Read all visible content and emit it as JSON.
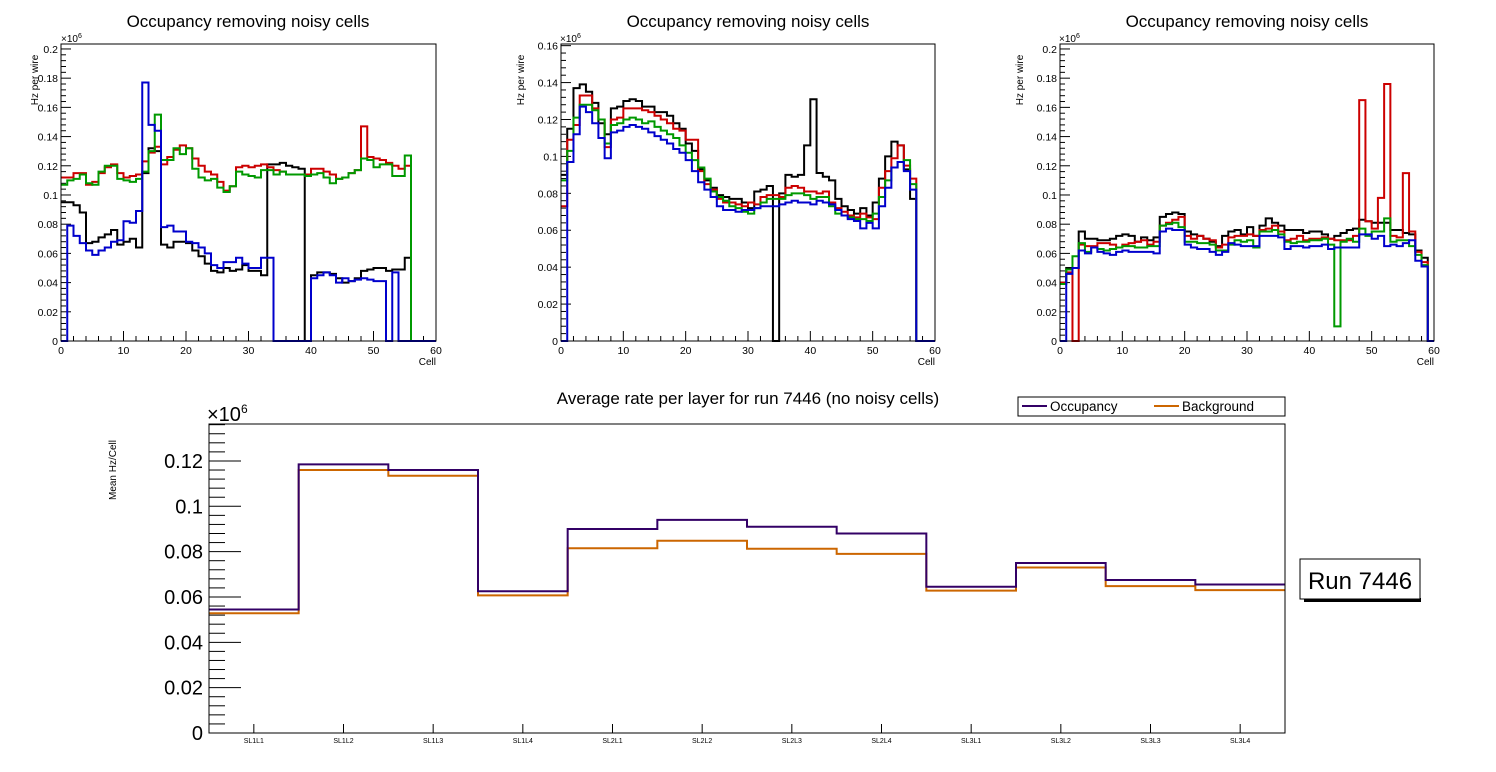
{
  "chart_data": [
    {
      "type": "line",
      "style": "step-histogram",
      "title": "Occupancy removing noisy cells",
      "xlabel": "Cell",
      "ylabel": "Hz per wire",
      "y_exponent": "×10^6",
      "y_exponent_base": "×10",
      "y_exponent_power": "6",
      "xlim": [
        0,
        60
      ],
      "ylim": [
        0,
        0.2034
      ],
      "xticks": [
        "0",
        "10",
        "20",
        "30",
        "40",
        "50",
        "60"
      ],
      "yticks": [
        "0",
        "0.02",
        "0.04",
        "0.06",
        "0.08",
        "0.1",
        "0.12",
        "0.14",
        "0.16",
        "0.18",
        "0.2"
      ],
      "ytick_values": [
        0,
        0.02,
        0.04,
        0.06,
        0.08,
        0.1,
        0.12,
        0.14,
        0.16,
        0.18,
        0.2
      ],
      "legend": "none",
      "series": [
        {
          "name": "black",
          "color": "#000000",
          "values": [
            0.095,
            0.095,
            0.093,
            0.088,
            0.067,
            0.068,
            0.071,
            0.073,
            0.076,
            0.066,
            0.068,
            0.07,
            0.064,
            0.115,
            0.132,
            0.13,
            0.066,
            0.064,
            0.068,
            0.068,
            0.067,
            0.062,
            0.058,
            0.053,
            0.048,
            0.047,
            0.05,
            0.048,
            0.049,
            0.052,
            0.048,
            0.048,
            0.045,
            0.121,
            0.121,
            0.122,
            0.12,
            0.119,
            0.118,
            0.0,
            0.045,
            0.047,
            0.047,
            0.046,
            0.043,
            0.04,
            0.041,
            0.043,
            0.048,
            0.049,
            0.05,
            0.05,
            0.048,
            0.049,
            0.049,
            0.057,
            0.0,
            0,
            0,
            0
          ]
        },
        {
          "name": "red",
          "color": "#cc0000",
          "values": [
            0.112,
            0.112,
            0.115,
            0.115,
            0.107,
            0.109,
            0.115,
            0.119,
            0.121,
            0.115,
            0.112,
            0.113,
            0.114,
            0.123,
            0.129,
            0.133,
            0.121,
            0.126,
            0.131,
            0.134,
            0.132,
            0.125,
            0.12,
            0.116,
            0.114,
            0.109,
            0.103,
            0.106,
            0.119,
            0.12,
            0.119,
            0.12,
            0.121,
            0.119,
            0.117,
            0.116,
            0.114,
            0.114,
            0.114,
            0.114,
            0.118,
            0.118,
            0.116,
            0.114,
            0.111,
            0.112,
            0.115,
            0.117,
            0.147,
            0.126,
            0.125,
            0.124,
            0.122,
            0.12,
            0.118,
            0.12,
            0.0,
            0,
            0,
            0
          ]
        },
        {
          "name": "green",
          "color": "#009900",
          "values": [
            0.107,
            0.11,
            0.111,
            0.114,
            0.108,
            0.107,
            0.116,
            0.12,
            0.12,
            0.111,
            0.11,
            0.109,
            0.111,
            0.116,
            0.13,
            0.155,
            0.124,
            0.124,
            0.132,
            0.128,
            0.132,
            0.118,
            0.112,
            0.11,
            0.111,
            0.105,
            0.102,
            0.106,
            0.116,
            0.114,
            0.113,
            0.112,
            0.117,
            0.117,
            0.114,
            0.116,
            0.114,
            0.114,
            0.114,
            0.113,
            0.114,
            0.115,
            0.112,
            0.108,
            0.111,
            0.112,
            0.115,
            0.117,
            0.125,
            0.124,
            0.119,
            0.121,
            0.121,
            0.113,
            0.113,
            0.127,
            0.0,
            0,
            0,
            0
          ]
        },
        {
          "name": "blue",
          "color": "#0000cc",
          "values": [
            0.0,
            0.079,
            0.072,
            0.067,
            0.062,
            0.059,
            0.062,
            0.064,
            0.068,
            0.069,
            0.082,
            0.081,
            0.089,
            0.177,
            0.148,
            0.144,
            0.078,
            0.079,
            0.075,
            0.075,
            0.068,
            0.067,
            0.064,
            0.06,
            0.052,
            0.05,
            0.054,
            0.054,
            0.057,
            0.053,
            0.05,
            0.05,
            0.057,
            0.057,
            0.0,
            0.0,
            0.0,
            0.0,
            0.0,
            0.0,
            0.043,
            0.045,
            0.047,
            0.045,
            0.04,
            0.043,
            0.041,
            0.042,
            0.043,
            0.042,
            0.041,
            0.041,
            0.0,
            0.047,
            0.0,
            0.0,
            0.0,
            0,
            0,
            0
          ]
        }
      ]
    },
    {
      "type": "line",
      "style": "step-histogram",
      "title": "Occupancy removing noisy cells",
      "xlabel": "Cell",
      "ylabel": "Hz per wire",
      "y_exponent_base": "×10",
      "y_exponent_power": "6",
      "xlim": [
        0,
        60
      ],
      "ylim": [
        0,
        0.1609
      ],
      "xticks": [
        "0",
        "10",
        "20",
        "30",
        "40",
        "50",
        "60"
      ],
      "yticks": [
        "0",
        "0.02",
        "0.04",
        "0.06",
        "0.08",
        "0.1",
        "0.12",
        "0.14",
        "0.16"
      ],
      "ytick_values": [
        0,
        0.02,
        0.04,
        0.06,
        0.08,
        0.1,
        0.12,
        0.14,
        0.16
      ],
      "legend": "none",
      "series": [
        {
          "name": "black",
          "color": "#000000",
          "values": [
            0.09,
            0.115,
            0.137,
            0.139,
            0.135,
            0.129,
            0.118,
            0.112,
            0.126,
            0.127,
            0.13,
            0.131,
            0.13,
            0.127,
            0.127,
            0.124,
            0.124,
            0.122,
            0.118,
            0.115,
            0.107,
            0.103,
            0.093,
            0.087,
            0.083,
            0.079,
            0.078,
            0.077,
            0.077,
            0.075,
            0.072,
            0.081,
            0.082,
            0.084,
            0.0,
            0.08,
            0.09,
            0.089,
            0.09,
            0.106,
            0.131,
            0.091,
            0.089,
            0.087,
            0.077,
            0.073,
            0.071,
            0.069,
            0.072,
            0.068,
            0.075,
            0.088,
            0.1,
            0.108,
            0.106,
            0.093,
            0.077,
            0.0,
            0,
            0
          ]
        },
        {
          "name": "red",
          "color": "#cc0000",
          "values": [
            0.073,
            0.109,
            0.117,
            0.133,
            0.133,
            0.126,
            0.12,
            0.105,
            0.12,
            0.121,
            0.126,
            0.126,
            0.126,
            0.125,
            0.124,
            0.122,
            0.12,
            0.118,
            0.115,
            0.114,
            0.109,
            0.109,
            0.092,
            0.085,
            0.082,
            0.077,
            0.075,
            0.075,
            0.074,
            0.073,
            0.075,
            0.074,
            0.078,
            0.079,
            0.079,
            0.078,
            0.083,
            0.084,
            0.083,
            0.081,
            0.081,
            0.08,
            0.081,
            0.075,
            0.072,
            0.07,
            0.068,
            0.067,
            0.069,
            0.067,
            0.066,
            0.083,
            0.092,
            0.099,
            0.106,
            0.095,
            0.088,
            0.0,
            0,
            0
          ]
        },
        {
          "name": "green",
          "color": "#009900",
          "values": [
            0.087,
            0.103,
            0.121,
            0.128,
            0.128,
            0.125,
            0.12,
            0.107,
            0.117,
            0.118,
            0.12,
            0.121,
            0.12,
            0.118,
            0.119,
            0.116,
            0.114,
            0.112,
            0.11,
            0.106,
            0.102,
            0.098,
            0.094,
            0.088,
            0.081,
            0.078,
            0.076,
            0.073,
            0.072,
            0.07,
            0.069,
            0.072,
            0.075,
            0.077,
            0.077,
            0.077,
            0.079,
            0.08,
            0.08,
            0.079,
            0.077,
            0.078,
            0.078,
            0.073,
            0.069,
            0.068,
            0.067,
            0.066,
            0.066,
            0.065,
            0.069,
            0.078,
            0.087,
            0.094,
            0.097,
            0.098,
            0.085,
            0.0,
            0,
            0
          ]
        },
        {
          "name": "blue",
          "color": "#0000cc",
          "values": [
            0.0,
            0.097,
            0.112,
            0.127,
            0.124,
            0.118,
            0.11,
            0.099,
            0.113,
            0.114,
            0.116,
            0.117,
            0.116,
            0.115,
            0.113,
            0.111,
            0.109,
            0.107,
            0.104,
            0.102,
            0.098,
            0.092,
            0.086,
            0.082,
            0.078,
            0.073,
            0.071,
            0.071,
            0.07,
            0.071,
            0.071,
            0.072,
            0.073,
            0.073,
            0.073,
            0.074,
            0.075,
            0.076,
            0.075,
            0.075,
            0.074,
            0.076,
            0.075,
            0.074,
            0.071,
            0.068,
            0.066,
            0.065,
            0.061,
            0.064,
            0.061,
            0.073,
            0.083,
            0.094,
            0.097,
            0.092,
            0.082,
            0.0,
            0,
            0
          ]
        }
      ]
    },
    {
      "type": "line",
      "style": "step-histogram",
      "title": "Occupancy removing noisy cells",
      "xlabel": "Cell",
      "ylabel": "Hz per wire",
      "y_exponent_base": "×10",
      "y_exponent_power": "6",
      "xlim": [
        0,
        60
      ],
      "ylim": [
        0,
        0.2034
      ],
      "xticks": [
        "0",
        "10",
        "20",
        "30",
        "40",
        "50",
        "60"
      ],
      "yticks": [
        "0",
        "0.02",
        "0.04",
        "0.06",
        "0.08",
        "0.1",
        "0.12",
        "0.14",
        "0.16",
        "0.18",
        "0.2"
      ],
      "ytick_values": [
        0,
        0.02,
        0.04,
        0.06,
        0.08,
        0.1,
        0.12,
        0.14,
        0.16,
        0.18,
        0.2
      ],
      "legend": "none",
      "series": [
        {
          "name": "black",
          "color": "#000000",
          "values": [
            0.04,
            0.05,
            0.05,
            0.075,
            0.07,
            0.07,
            0.069,
            0.069,
            0.07,
            0.072,
            0.073,
            0.072,
            0.068,
            0.071,
            0.069,
            0.071,
            0.085,
            0.087,
            0.088,
            0.087,
            0.075,
            0.073,
            0.072,
            0.07,
            0.068,
            0.065,
            0.072,
            0.075,
            0.076,
            0.073,
            0.078,
            0.072,
            0.079,
            0.084,
            0.081,
            0.079,
            0.076,
            0.076,
            0.076,
            0.074,
            0.075,
            0.075,
            0.073,
            0.07,
            0.072,
            0.074,
            0.076,
            0.077,
            0.083,
            0.082,
            0.081,
            0.081,
            0.081,
            0.076,
            0.076,
            0.074,
            0.073,
            0.062,
            0.057,
            0
          ]
        },
        {
          "name": "red",
          "color": "#cc0000",
          "values": [
            0.04,
            0.047,
            0.0,
            0.066,
            0.065,
            0.065,
            0.067,
            0.067,
            0.066,
            0.064,
            0.066,
            0.067,
            0.068,
            0.069,
            0.066,
            0.068,
            0.079,
            0.081,
            0.083,
            0.085,
            0.072,
            0.07,
            0.072,
            0.07,
            0.069,
            0.064,
            0.066,
            0.071,
            0.072,
            0.072,
            0.073,
            0.072,
            0.076,
            0.077,
            0.079,
            0.075,
            0.069,
            0.07,
            0.072,
            0.069,
            0.07,
            0.07,
            0.071,
            0.07,
            0.069,
            0.069,
            0.069,
            0.072,
            0.165,
            0.082,
            0.077,
            0.098,
            0.176,
            0.072,
            0.071,
            0.115,
            0.075,
            0.061,
            0.054,
            0
          ]
        },
        {
          "name": "green",
          "color": "#009900",
          "values": [
            0.039,
            0.049,
            0.058,
            0.067,
            0.061,
            0.064,
            0.063,
            0.062,
            0.063,
            0.064,
            0.065,
            0.065,
            0.064,
            0.064,
            0.065,
            0.065,
            0.079,
            0.08,
            0.081,
            0.078,
            0.068,
            0.068,
            0.067,
            0.067,
            0.066,
            0.062,
            0.062,
            0.066,
            0.069,
            0.068,
            0.069,
            0.064,
            0.075,
            0.075,
            0.076,
            0.073,
            0.068,
            0.067,
            0.068,
            0.068,
            0.069,
            0.069,
            0.07,
            0.066,
            0.01,
            0.068,
            0.07,
            0.068,
            0.077,
            0.072,
            0.075,
            0.075,
            0.084,
            0.068,
            0.069,
            0.069,
            0.065,
            0.059,
            0.052,
            0
          ]
        },
        {
          "name": "blue",
          "color": "#0000cc",
          "values": [
            0.0,
            0.046,
            0.05,
            0.062,
            0.06,
            0.064,
            0.061,
            0.06,
            0.059,
            0.061,
            0.062,
            0.061,
            0.061,
            0.061,
            0.061,
            0.06,
            0.075,
            0.077,
            0.076,
            0.076,
            0.066,
            0.064,
            0.063,
            0.063,
            0.061,
            0.059,
            0.061,
            0.067,
            0.066,
            0.065,
            0.065,
            0.065,
            0.072,
            0.072,
            0.072,
            0.071,
            0.063,
            0.065,
            0.065,
            0.064,
            0.065,
            0.065,
            0.066,
            0.063,
            0.064,
            0.064,
            0.064,
            0.064,
            0.073,
            0.073,
            0.07,
            0.072,
            0.065,
            0.066,
            0.065,
            0.067,
            0.069,
            0.055,
            0.051,
            0
          ]
        }
      ]
    },
    {
      "type": "line",
      "style": "step-histogram",
      "title": "Average rate per layer for run 7446 (no noisy cells)",
      "xlabel": "",
      "ylabel": "Mean Hz/Cell",
      "y_exponent_base": "×10",
      "y_exponent_power": "6",
      "categories": [
        "SL1L1",
        "SL1L2",
        "SL1L3",
        "SL1L4",
        "SL2L1",
        "SL2L2",
        "SL2L3",
        "SL2L4",
        "SL3L1",
        "SL3L2",
        "SL3L3",
        "SL3L4"
      ],
      "ylim": [
        0,
        0.1363
      ],
      "yticks": [
        "0",
        "0.02",
        "0.04",
        "0.06",
        "0.08",
        "0.1",
        "0.12"
      ],
      "ytick_values": [
        0,
        0.02,
        0.04,
        0.06,
        0.08,
        0.1,
        0.12
      ],
      "legend": "top-right",
      "series": [
        {
          "name": "Occupancy",
          "color": "#330066",
          "values": [
            0.0545,
            0.1185,
            0.116,
            0.0625,
            0.09,
            0.094,
            0.091,
            0.088,
            0.0645,
            0.075,
            0.0675,
            0.0655
          ]
        },
        {
          "name": "Background",
          "color": "#cc6600",
          "values": [
            0.0528,
            0.116,
            0.1135,
            0.0607,
            0.0815,
            0.0848,
            0.0813,
            0.079,
            0.0628,
            0.073,
            0.0648,
            0.063
          ]
        }
      ],
      "annotation": "Run 7446"
    }
  ]
}
